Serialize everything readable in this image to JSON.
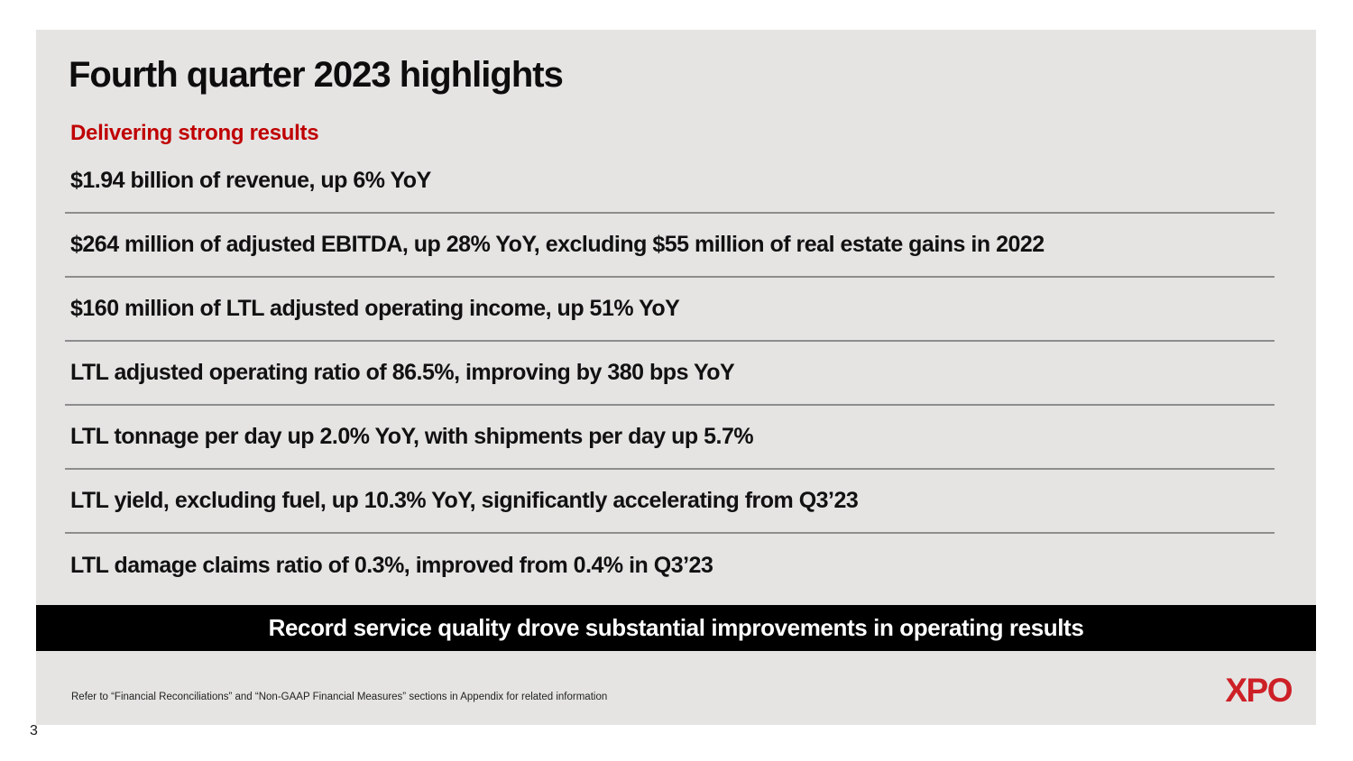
{
  "page": {
    "page_number": "3"
  },
  "slide": {
    "title": "Fourth quarter 2023 highlights",
    "subtitle": "Delivering strong results",
    "bullets": [
      "$1.94 billion of revenue, up 6% YoY",
      "$264 million of adjusted EBITDA, up 28% YoY, excluding $55 million of real estate gains in 2022",
      "$160 million of LTL adjusted operating income, up 51% YoY",
      "LTL adjusted operating ratio of 86.5%, improving by 380 bps YoY",
      "LTL tonnage per day up 2.0% YoY, with shipments per day up 5.7%",
      "LTL yield, excluding fuel, up 10.3% YoY, significantly accelerating from Q3’23",
      "LTL damage claims ratio of 0.3%, improved from 0.4% in Q3’23"
    ],
    "banner": "Record service quality drove substantial improvements in operating results",
    "footnote": "Refer to “Financial Reconciliations” and “Non-GAAP Financial Measures” sections in Appendix for related information",
    "logo_text": "XPO",
    "colors": {
      "slide_bg": "#e5e4e3",
      "accent_red": "#c00000",
      "logo_red": "#cd2026",
      "banner_bg": "#000000",
      "divider_gray": "#8d8d8d"
    }
  }
}
